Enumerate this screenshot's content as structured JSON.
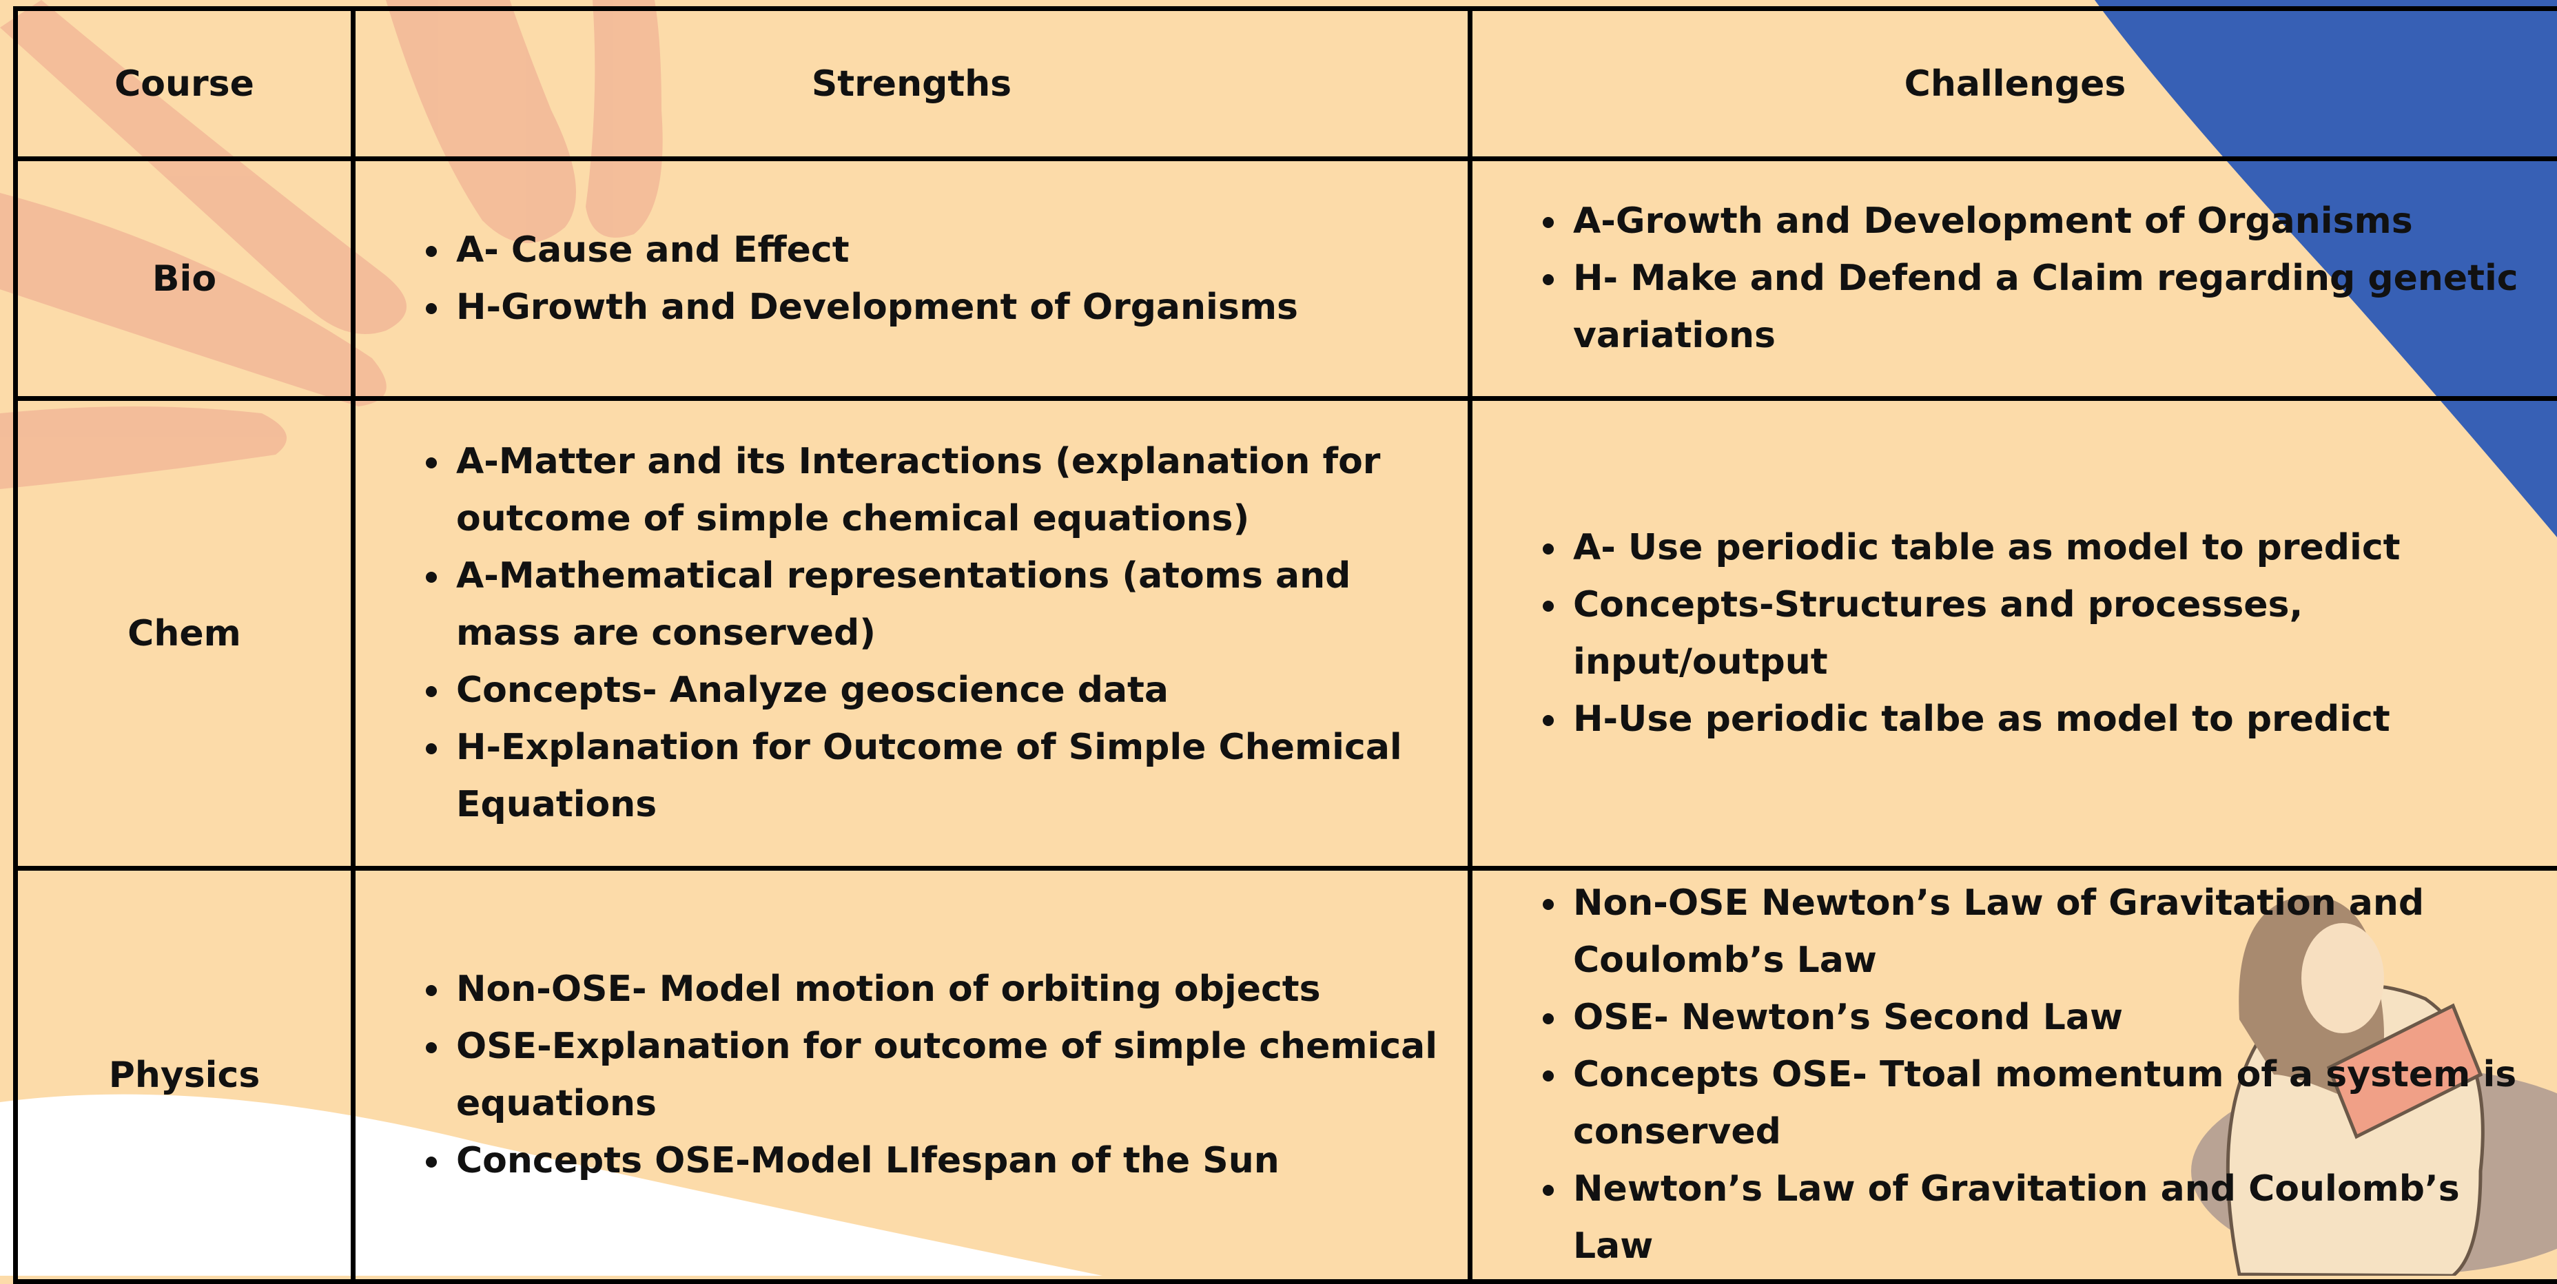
{
  "table": {
    "header": [
      "Course",
      "Strengths",
      "Challenges"
    ],
    "rows": [
      {
        "course": "Bio",
        "strengths": [
          "A- Cause and Effect",
          "H-Growth and Development of Organisms"
        ],
        "challenges": [
          "A-Growth and Development of Organisms",
          "H- Make and Defend a Claim regarding genetic variations"
        ]
      },
      {
        "course": "Chem",
        "strengths": [
          "A-Matter and its Interactions (explanation for outcome of simple chemical equations)",
          "A-Mathematical representations (atoms and mass are conserved)",
          "Concepts- Analyze geoscience data",
          "H-Explanation for Outcome of Simple Chemical Equations"
        ],
        "challenges": [
          "A- Use periodic table as model to predict",
          "Concepts-Structures and processes, input/output",
          "H-Use periodic talbe as model to predict"
        ]
      },
      {
        "course": "Physics",
        "strengths": [
          "Non-OSE- Model motion of orbiting objects",
          "OSE-Explanation for outcome of simple chemical equations",
          "Concepts OSE-Model LIfespan of the Sun"
        ],
        "challenges": [
          "Non-OSE Newton’s Law of Gravitation and Coulomb’s Law",
          "OSE- Newton’s Second Law",
          "Concepts OSE- Ttoal momentum of a system is conserved",
          "Newton’s Law of Gravitation and Coulomb’s Law"
        ]
      }
    ]
  }
}
